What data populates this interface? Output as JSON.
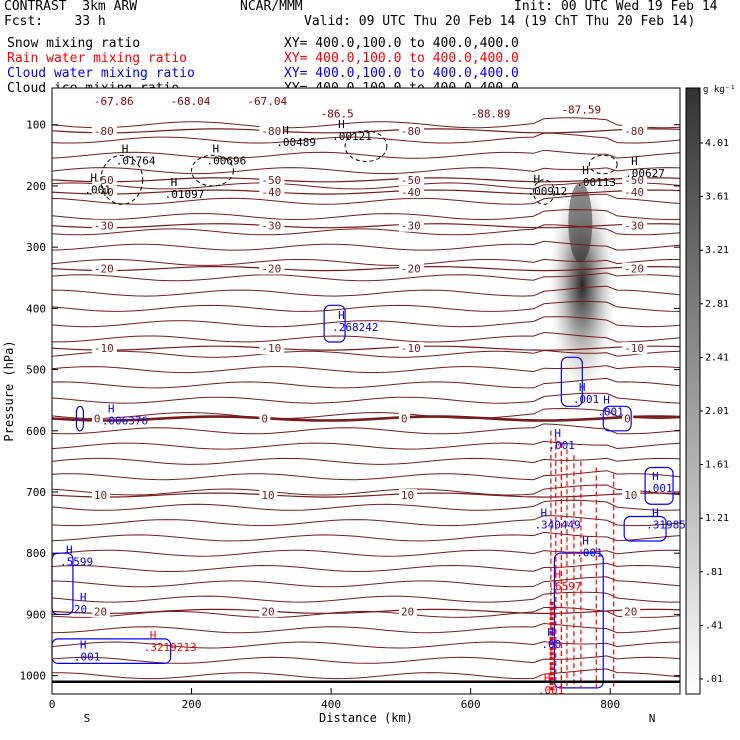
{
  "header": {
    "model": "CONTRAST  3km ARW",
    "org": "NCAR/MMM",
    "init": "Init: 00 UTC Wed 19 Feb 14",
    "fcst": "Fcst:    33 h",
    "valid": "Valid: 09 UTC Thu 20 Feb 14 (19 ChT Thu 20 Feb 14)"
  },
  "fields": [
    {
      "name": "Snow mixing ratio",
      "xy": "XY= 400.0,100.0 to 400.0,400.0",
      "color": "#000000"
    },
    {
      "name": "Rain water mixing ratio",
      "xy": "XY= 400.0,100.0 to 400.0,400.0",
      "color": "#ff0000"
    },
    {
      "name": "Cloud water mixing ratio",
      "xy": "XY= 400.0,100.0 to 400.0,400.0",
      "color": "#0000ff"
    },
    {
      "name": "Cloud ice mixing ratio",
      "xy": "XY= 400.0,100.0 to 400.0,400.0",
      "color": "#000000"
    }
  ],
  "chart_data": {
    "type": "contour",
    "xlabel": "Distance (km)",
    "ylabel": "Pressure (hPa)",
    "xlim": [
      0,
      900
    ],
    "ylim": [
      1030,
      40
    ],
    "x_ticks": [
      0,
      200,
      400,
      600,
      800
    ],
    "y_ticks": [
      100,
      200,
      300,
      400,
      500,
      600,
      700,
      800,
      900,
      1000
    ],
    "x_end_labels": {
      "left": "S",
      "right": "N"
    },
    "temperature_contours": [
      {
        "label": "-80",
        "p": 110
      },
      {
        "label": "-50",
        "p": 190
      },
      {
        "label": "-40",
        "p": 210
      },
      {
        "label": "-30",
        "p": 265
      },
      {
        "label": "-20",
        "p": 335
      },
      {
        "label": "-10",
        "p": 465
      },
      {
        "label": "0",
        "p": 580,
        "bold": true
      },
      {
        "label": "10",
        "p": 705
      },
      {
        "label": "20",
        "p": 895
      }
    ],
    "theta_labels": [
      {
        "text": "-67.86",
        "x": 60,
        "p": 68,
        "color": "#8b0000"
      },
      {
        "text": "-68.04",
        "x": 170,
        "p": 68,
        "color": "#8b0000"
      },
      {
        "text": "-67.04",
        "x": 280,
        "p": 68,
        "color": "#8b0000"
      },
      {
        "text": "-86.5",
        "x": 385,
        "p": 88,
        "color": "#8b0000"
      },
      {
        "text": "-88.89",
        "x": 600,
        "p": 88,
        "color": "#8b0000"
      },
      {
        "text": "-87.59",
        "x": 730,
        "p": 82,
        "color": "#8b0000"
      }
    ],
    "max_labels": [
      {
        "text": ".01764",
        "x": 100,
        "p": 165,
        "color": "#000000"
      },
      {
        "text": ".00696",
        "x": 230,
        "p": 165,
        "color": "#000000"
      },
      {
        "text": ".00489",
        "x": 330,
        "p": 135,
        "color": "#000000"
      },
      {
        "text": ".00121",
        "x": 410,
        "p": 125,
        "color": "#000000"
      },
      {
        "text": ".01097",
        "x": 170,
        "p": 220,
        "color": "#000000"
      },
      {
        "text": ".00912",
        "x": 690,
        "p": 215,
        "color": "#000000"
      },
      {
        "text": ".00113",
        "x": 760,
        "p": 200,
        "color": "#000000"
      },
      {
        "text": ".00627",
        "x": 830,
        "p": 185,
        "color": "#000000"
      },
      {
        "text": ".001",
        "x": 55,
        "p": 212,
        "color": "#000000"
      },
      {
        "text": ".268242",
        "x": 410,
        "p": 437,
        "color": "#0000ff"
      },
      {
        "text": ".006376",
        "x": 80,
        "p": 590,
        "color": "#0000ff"
      },
      {
        "text": ".001",
        "x": 755,
        "p": 555,
        "color": "#0000ff"
      },
      {
        "text": ".001",
        "x": 720,
        "p": 630,
        "color": "#0000ff"
      },
      {
        "text": ".001",
        "x": 790,
        "p": 575,
        "color": "#0000ff"
      },
      {
        "text": ".001",
        "x": 860,
        "p": 700,
        "color": "#0000ff"
      },
      {
        "text": ".340449",
        "x": 700,
        "p": 760,
        "color": "#0000ff"
      },
      {
        "text": ".319859",
        "x": 860,
        "p": 760,
        "color": "#0000ff"
      },
      {
        "text": ".6597",
        "x": 720,
        "p": 860,
        "color": "#ff0000"
      },
      {
        "text": ".001",
        "x": 760,
        "p": 805,
        "color": "#0000ff"
      },
      {
        "text": ".5599",
        "x": 20,
        "p": 820,
        "color": "#0000ff"
      },
      {
        "text": ".001",
        "x": 40,
        "p": 975,
        "color": "#0000ff"
      },
      {
        "text": ".3219213",
        "x": 140,
        "p": 960,
        "color": "#ff0000"
      },
      {
        "text": ".00",
        "x": 710,
        "p": 955,
        "color": "#0000ff"
      },
      {
        "text": ".001",
        "x": 705,
        "p": 1030,
        "color": "#ff0000"
      },
      {
        "text": "20",
        "x": 40,
        "p": 898,
        "color": "#0000ff"
      }
    ],
    "snow_core": {
      "x": 760,
      "p_top": 200,
      "p_bottom": 560,
      "peak": 2.4
    },
    "colorbar": {
      "units": "g kg⁻¹",
      "labels": [
        "4.01",
        "3.61",
        "3.21",
        "2.81",
        "2.41",
        "2.01",
        "1.61",
        "1.21",
        ".81",
        ".41",
        ".01"
      ]
    }
  }
}
